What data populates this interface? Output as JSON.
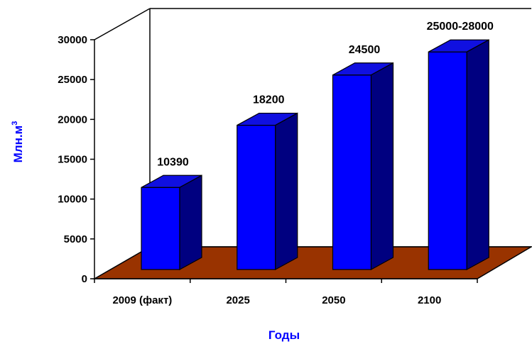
{
  "chart_data": {
    "type": "bar",
    "categories": [
      "2009 (факт)",
      "2025",
      "2050",
      "2100"
    ],
    "values": [
      10390,
      18200,
      24500,
      27400
    ],
    "data_labels": [
      "10390",
      "18200",
      "24500",
      "25000-28000"
    ],
    "y_ticks": [
      "0",
      "5000",
      "10000",
      "15000",
      "20000",
      "25000",
      "30000"
    ],
    "ylim": [
      0,
      30000
    ],
    "xlabel": "Годы",
    "ylabel": "Млн.м",
    "ylabel_superscript": "3",
    "title": "",
    "grid": false,
    "legend": "none",
    "colors": {
      "bar_front": "#0000ff",
      "bar_top": "#1010e0",
      "bar_side": "#000080",
      "floor": "#993300",
      "axis_title": "#0000ff",
      "lines": "#000000"
    }
  }
}
